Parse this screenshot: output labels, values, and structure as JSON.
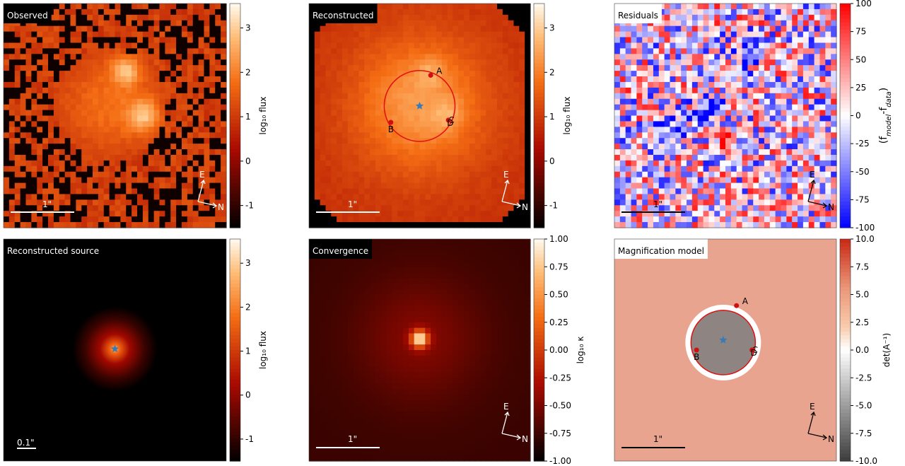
{
  "panels": [
    {
      "title": "Observed",
      "colorbar": {
        "label": "log₁₀ flux",
        "lim": [
          -1.5,
          3.55
        ],
        "ticks": [
          -1,
          0,
          1,
          2,
          3
        ]
      },
      "scale_bar": "1\"",
      "compass": [
        "E",
        "N"
      ]
    },
    {
      "title": "Reconstructed",
      "colorbar": {
        "label": "log₁₀ flux",
        "lim": [
          -1.5,
          3.55
        ],
        "ticks": [
          -1,
          0,
          1,
          2,
          3
        ]
      },
      "scale_bar": "1\"",
      "compass": [
        "E",
        "N"
      ],
      "images": [
        "A",
        "B",
        "C",
        "D"
      ]
    },
    {
      "title": "Residuals",
      "colorbar": {
        "label_parts": [
          "(f",
          "model",
          "-f",
          "data",
          ")"
        ],
        "lim": [
          -100,
          100
        ],
        "ticks": [
          -100,
          -75,
          -50,
          -25,
          0,
          25,
          50,
          75,
          100
        ]
      },
      "scale_bar": "1\"",
      "compass": [
        "E",
        "N"
      ]
    },
    {
      "title": "Reconstructed source",
      "colorbar": {
        "label": "log₁₀ flux",
        "lim": [
          -1.5,
          3.55
        ],
        "ticks": [
          -1,
          0,
          1,
          2,
          3
        ]
      },
      "scale_bar": "0.1\""
    },
    {
      "title": "Convergence",
      "colorbar": {
        "label": "log₁₀ κ",
        "lim": [
          -1,
          1
        ],
        "ticks": [
          {
            "value": -1,
            "label": "-1.00"
          },
          {
            "value": -0.75,
            "label": "-0.75"
          },
          {
            "value": -0.5,
            "label": "-0.50"
          },
          {
            "value": -0.25,
            "label": "-0.25"
          },
          {
            "value": 0,
            "label": "0.00"
          },
          {
            "value": 0.25,
            "label": "0.25"
          },
          {
            "value": 0.5,
            "label": "0.50"
          },
          {
            "value": 0.75,
            "label": "0.75"
          },
          {
            "value": 1,
            "label": "1.00"
          }
        ]
      },
      "scale_bar": "1\"",
      "compass": [
        "E",
        "N"
      ]
    },
    {
      "title": "Magnification model",
      "colorbar": {
        "label": "det(A⁻¹)",
        "lim": [
          -10,
          10
        ],
        "ticks": [
          {
            "value": -10,
            "label": "-10.0"
          },
          {
            "value": -7.5,
            "label": "-7.5"
          },
          {
            "value": -5,
            "label": "-5.0"
          },
          {
            "value": -2.5,
            "label": "-2.5"
          },
          {
            "value": 0,
            "label": "0.0"
          },
          {
            "value": 2.5,
            "label": "2.5"
          },
          {
            "value": 5,
            "label": "5.0"
          },
          {
            "value": 7.5,
            "label": "7.5"
          },
          {
            "value": 10,
            "label": "10.0"
          }
        ]
      },
      "scale_bar": "1\"",
      "compass": [
        "E",
        "N"
      ],
      "images": [
        "A",
        "B",
        "C",
        "D"
      ]
    }
  ]
}
